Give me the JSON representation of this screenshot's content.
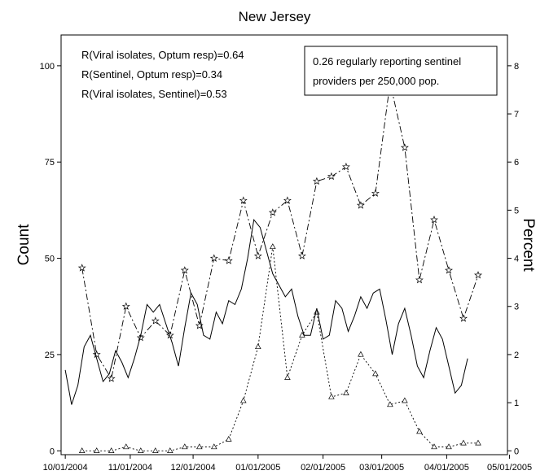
{
  "chart_data": {
    "type": "line",
    "title": "New Jersey",
    "ylabel": "Count",
    "y2label": "Percent",
    "xlabel": "",
    "x_ticks": [
      "10/01/2004",
      "11/01/2004",
      "12/01/2004",
      "01/01/2005",
      "02/01/2005",
      "03/01/2005",
      "04/01/2005",
      "05/01/2005"
    ],
    "y_ticks": [
      0,
      25,
      50,
      75,
      100
    ],
    "y2_ticks": [
      0,
      1,
      2,
      3,
      4,
      5,
      6,
      7,
      8
    ],
    "ylim": [
      -1,
      108
    ],
    "y2lim": [
      -0.08,
      8.64
    ],
    "xlim": [
      "09/29/2004",
      "04/30/2005"
    ],
    "grid": false,
    "annotations": [
      "R(Viral isolates, Optum resp)=0.64",
      "R(Sentinel, Optum resp)=0.34",
      "R(Viral isolates, Sentinel)=0.53"
    ],
    "info_box": [
      "0.26 regularly reporting sentinel",
      "providers per 250,000 pop."
    ],
    "series": [
      {
        "style": "dash-dot with star markers",
        "axis": "right",
        "points": [
          [
            "10/09/2004",
            3.8
          ],
          [
            "10/16/2004",
            2.0
          ],
          [
            "10/23/2004",
            1.5
          ],
          [
            "10/30/2004",
            3.0
          ],
          [
            "11/06/2004",
            2.35
          ],
          [
            "11/13/2004",
            2.7
          ],
          [
            "11/20/2004",
            2.4
          ],
          [
            "11/27/2004",
            3.75
          ],
          [
            "12/04/2004",
            2.6
          ],
          [
            "12/11/2004",
            4.0
          ],
          [
            "12/18/2004",
            3.95
          ],
          [
            "12/25/2004",
            5.2
          ],
          [
            "01/01/2005",
            4.05
          ],
          [
            "01/08/2005",
            4.95
          ],
          [
            "01/15/2005",
            5.2
          ],
          [
            "01/22/2005",
            4.05
          ],
          [
            "01/29/2005",
            5.6
          ],
          [
            "02/05/2005",
            5.7
          ],
          [
            "02/12/2005",
            5.9
          ],
          [
            "02/19/2005",
            5.1
          ],
          [
            "02/26/2005",
            5.35
          ],
          [
            "03/05/2005",
            7.65
          ],
          [
            "03/12/2005",
            6.3
          ],
          [
            "03/19/2005",
            3.55
          ],
          [
            "03/26/2005",
            4.8
          ],
          [
            "04/02/2005",
            3.75
          ],
          [
            "04/09/2005",
            2.75
          ],
          [
            "04/16/2005",
            3.65
          ]
        ]
      },
      {
        "style": "dotted with triangle markers",
        "axis": "left",
        "points": [
          [
            "10/09/2004",
            0
          ],
          [
            "10/16/2004",
            0
          ],
          [
            "10/23/2004",
            0
          ],
          [
            "10/30/2004",
            1
          ],
          [
            "11/06/2004",
            0
          ],
          [
            "11/13/2004",
            0
          ],
          [
            "11/20/2004",
            0
          ],
          [
            "11/27/2004",
            1
          ],
          [
            "12/04/2004",
            1
          ],
          [
            "12/11/2004",
            1
          ],
          [
            "12/18/2004",
            3
          ],
          [
            "12/25/2004",
            13
          ],
          [
            "01/01/2005",
            27
          ],
          [
            "01/08/2005",
            53
          ],
          [
            "01/15/2005",
            19
          ],
          [
            "01/22/2005",
            30
          ],
          [
            "01/29/2005",
            36
          ],
          [
            "02/05/2005",
            14
          ],
          [
            "02/12/2005",
            15
          ],
          [
            "02/19/2005",
            25
          ],
          [
            "02/26/2005",
            20
          ],
          [
            "03/05/2005",
            12
          ],
          [
            "03/12/2005",
            13
          ],
          [
            "03/19/2005",
            5
          ],
          [
            "03/26/2005",
            1
          ],
          [
            "04/02/2005",
            1
          ],
          [
            "04/09/2005",
            2
          ],
          [
            "04/16/2005",
            2
          ]
        ]
      },
      {
        "style": "solid",
        "axis": "left",
        "points": [
          [
            "10/01/2004",
            21
          ],
          [
            "10/04/2004",
            12
          ],
          [
            "10/07/2004",
            17
          ],
          [
            "10/10/2004",
            27
          ],
          [
            "10/13/2004",
            30
          ],
          [
            "10/16/2004",
            24
          ],
          [
            "10/19/2004",
            18
          ],
          [
            "10/22/2004",
            20
          ],
          [
            "10/25/2004",
            26
          ],
          [
            "10/28/2004",
            23
          ],
          [
            "10/31/2004",
            19
          ],
          [
            "11/03/2004",
            24
          ],
          [
            "11/06/2004",
            30
          ],
          [
            "11/09/2004",
            38
          ],
          [
            "11/12/2004",
            36
          ],
          [
            "11/15/2004",
            38
          ],
          [
            "11/18/2004",
            33
          ],
          [
            "11/21/2004",
            28
          ],
          [
            "11/24/2004",
            22
          ],
          [
            "11/27/2004",
            32
          ],
          [
            "11/30/2004",
            41
          ],
          [
            "12/03/2004",
            38
          ],
          [
            "12/06/2004",
            30
          ],
          [
            "12/09/2004",
            29
          ],
          [
            "12/12/2004",
            36
          ],
          [
            "12/15/2004",
            33
          ],
          [
            "12/18/2004",
            39
          ],
          [
            "12/21/2004",
            38
          ],
          [
            "12/24/2004",
            42
          ],
          [
            "12/27/2004",
            50
          ],
          [
            "12/30/2004",
            60
          ],
          [
            "01/02/2005",
            58
          ],
          [
            "01/05/2005",
            52
          ],
          [
            "01/08/2005",
            46
          ],
          [
            "01/11/2005",
            43
          ],
          [
            "01/14/2005",
            40
          ],
          [
            "01/17/2005",
            42
          ],
          [
            "01/20/2005",
            35
          ],
          [
            "01/23/2005",
            30
          ],
          [
            "01/26/2005",
            30
          ],
          [
            "01/29/2005",
            37
          ],
          [
            "02/01/2005",
            29
          ],
          [
            "02/04/2005",
            30
          ],
          [
            "02/07/2005",
            39
          ],
          [
            "02/10/2005",
            37
          ],
          [
            "02/13/2005",
            31
          ],
          [
            "02/16/2005",
            35
          ],
          [
            "02/19/2005",
            40
          ],
          [
            "02/22/2005",
            37
          ],
          [
            "02/25/2005",
            41
          ],
          [
            "02/28/2005",
            42
          ],
          [
            "03/03/2005",
            34
          ],
          [
            "03/06/2005",
            25
          ],
          [
            "03/09/2005",
            33
          ],
          [
            "03/12/2005",
            37
          ],
          [
            "03/15/2005",
            30
          ],
          [
            "03/18/2005",
            22
          ],
          [
            "03/21/2005",
            19
          ],
          [
            "03/24/2005",
            26
          ],
          [
            "03/27/2005",
            32
          ],
          [
            "03/30/2005",
            29
          ],
          [
            "04/02/2005",
            22
          ],
          [
            "04/05/2005",
            15
          ],
          [
            "04/08/2005",
            17
          ],
          [
            "04/11/2005",
            24
          ]
        ]
      }
    ]
  }
}
